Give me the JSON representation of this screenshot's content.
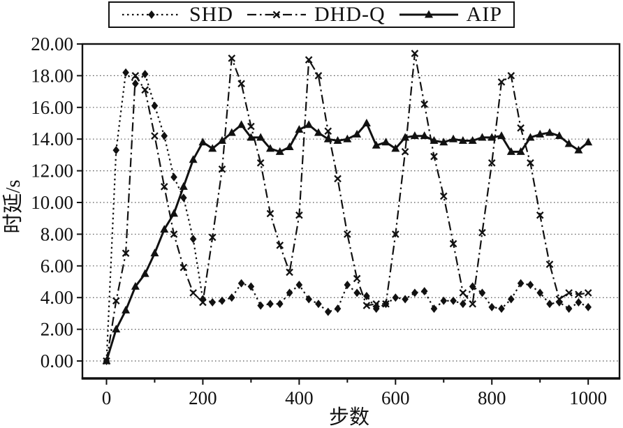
{
  "colors": {
    "foreground": "#111111",
    "background": "#ffffff",
    "grid": "#555555"
  },
  "chart_data": {
    "type": "line",
    "title": "",
    "xlabel": "步数",
    "ylabel": "时延/s",
    "xlim": [
      -50,
      1065
    ],
    "ylim": [
      -1.1,
      20
    ],
    "grid": "horizontal-dotted",
    "legend_position": "top-center",
    "x_ticks": [
      0,
      200,
      400,
      600,
      800,
      1000
    ],
    "x_tick_labels": [
      "0",
      "200",
      "400",
      "600",
      "800",
      "1000"
    ],
    "x_minor_ticks": [
      100,
      300,
      500,
      700,
      900
    ],
    "y_ticks": [
      0,
      2,
      4,
      6,
      8,
      10,
      12,
      14,
      16,
      18,
      20
    ],
    "y_tick_labels": [
      "0.00",
      "2.00",
      "4.00",
      "6.00",
      "8.00",
      "10.00",
      "12.00",
      "14.00",
      "16.00",
      "18.00",
      "20.00"
    ],
    "x": [
      0,
      20,
      40,
      60,
      80,
      100,
      120,
      140,
      160,
      180,
      200,
      220,
      240,
      260,
      280,
      300,
      320,
      340,
      360,
      380,
      400,
      420,
      440,
      460,
      480,
      500,
      520,
      540,
      560,
      580,
      600,
      620,
      640,
      660,
      680,
      700,
      720,
      740,
      760,
      780,
      800,
      820,
      840,
      860,
      880,
      900,
      920,
      940,
      960,
      980,
      1000
    ],
    "series": [
      {
        "name": "SHD",
        "marker": "diamond",
        "line": "dashed",
        "values": [
          0.0,
          13.3,
          18.2,
          17.5,
          18.1,
          16.1,
          14.2,
          11.6,
          10.3,
          7.7,
          3.9,
          3.7,
          3.8,
          4.0,
          4.9,
          4.7,
          3.5,
          3.6,
          3.6,
          4.3,
          4.8,
          3.9,
          3.6,
          3.1,
          3.3,
          4.8,
          4.3,
          4.1,
          3.3,
          3.6,
          4.0,
          3.9,
          4.3,
          4.4,
          3.3,
          3.8,
          3.8,
          3.6,
          4.7,
          4.3,
          3.4,
          3.3,
          3.9,
          4.9,
          4.8,
          4.3,
          3.6,
          3.7,
          3.3,
          3.7,
          3.4
        ]
      },
      {
        "name": "DHD-Q",
        "marker": "x",
        "line": "dashdot",
        "values": [
          0.0,
          3.8,
          6.8,
          18.0,
          17.1,
          14.2,
          11.0,
          8.0,
          5.9,
          4.3,
          3.7,
          7.8,
          12.1,
          19.1,
          17.5,
          14.8,
          12.5,
          9.3,
          7.3,
          5.6,
          9.2,
          19.0,
          18.0,
          14.5,
          11.5,
          8.0,
          5.2,
          3.5,
          3.6,
          3.6,
          8.0,
          13.2,
          19.4,
          16.2,
          12.9,
          10.4,
          7.4,
          4.3,
          3.6,
          8.1,
          12.5,
          17.6,
          18.0,
          14.7,
          12.5,
          9.2,
          6.1,
          3.9,
          4.3,
          4.2,
          4.3
        ]
      },
      {
        "name": "AIP",
        "marker": "triangle",
        "line": "solid",
        "values": [
          0.0,
          2.0,
          3.2,
          4.7,
          5.5,
          6.8,
          8.3,
          9.3,
          11.0,
          12.7,
          13.8,
          13.4,
          13.9,
          14.4,
          14.9,
          14.1,
          14.1,
          13.4,
          13.2,
          13.5,
          14.6,
          14.9,
          14.4,
          14.0,
          13.9,
          14.0,
          14.3,
          15.0,
          13.6,
          13.8,
          13.4,
          14.1,
          14.2,
          14.2,
          13.9,
          13.8,
          14.0,
          13.9,
          13.9,
          14.1,
          14.1,
          14.2,
          13.2,
          13.2,
          14.1,
          14.3,
          14.4,
          14.2,
          13.7,
          13.3,
          13.8
        ]
      }
    ]
  }
}
